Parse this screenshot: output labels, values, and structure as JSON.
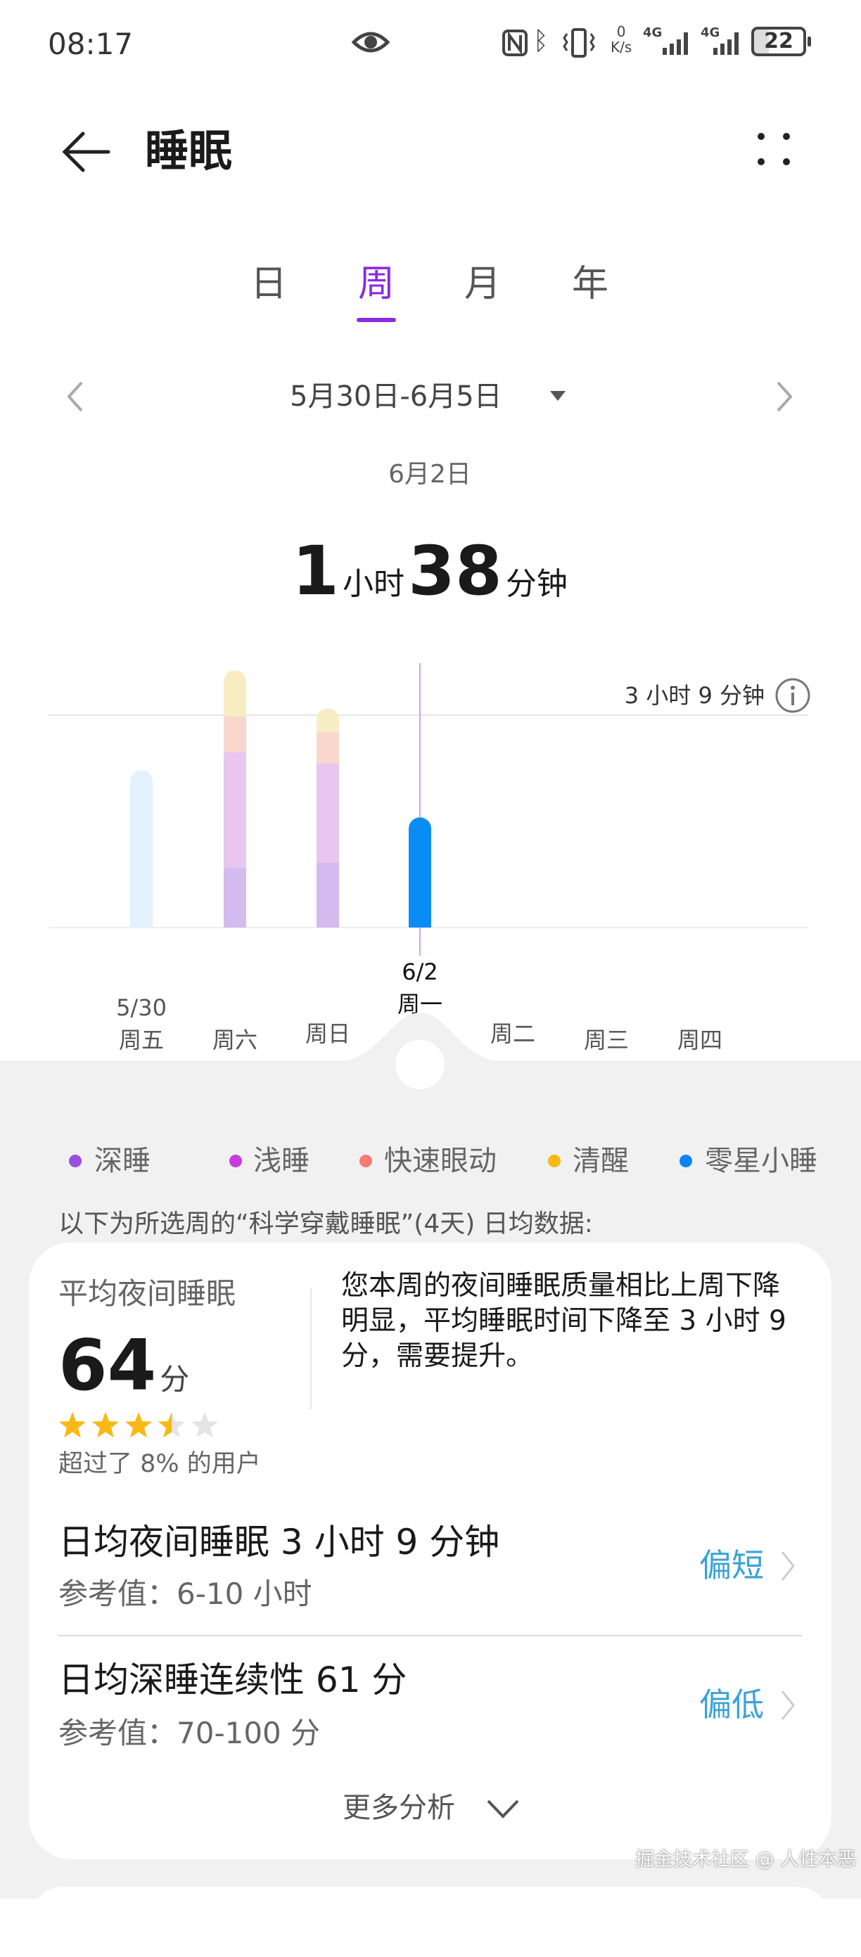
{
  "status_bar": {
    "time": "08:17",
    "net_speed_value": "0",
    "net_speed_unit": "K/s",
    "net1": "4G",
    "net2": "4G",
    "battery": "22",
    "icons": [
      "eye-icon",
      "nfc-icon",
      "bluetooth-icon",
      "vibrate-icon",
      "signal-icon",
      "battery-icon"
    ]
  },
  "header": {
    "title": "睡眠",
    "back_icon": "arrow-left-icon",
    "menu_icon": "more-dots-icon"
  },
  "tabs": [
    {
      "label": "日"
    },
    {
      "label": "周",
      "active": true
    },
    {
      "label": "月"
    },
    {
      "label": "年"
    }
  ],
  "accent": "#8a2be2",
  "date_range": "5月30日-6月5日",
  "selected_date": "6月2日",
  "summary": {
    "hours": "1",
    "hours_unit": "小时",
    "minutes": "38",
    "minutes_unit": "分钟"
  },
  "chart_data": {
    "type": "bar",
    "stacked": true,
    "categories": [
      "周五",
      "周六",
      "周日",
      "周一",
      "周二",
      "周三",
      "周四"
    ],
    "category_dates": [
      "5/30",
      "",
      "",
      "6/2",
      "",
      "",
      ""
    ],
    "unit": "minutes",
    "series": [
      {
        "name": "深睡",
        "color": "#d4bbef",
        "values": [
          0,
          53,
          58,
          0,
          0,
          0,
          0
        ]
      },
      {
        "name": "浅睡",
        "color": "#e8c6ef",
        "values": [
          0,
          103,
          88,
          0,
          0,
          0,
          0
        ]
      },
      {
        "name": "快速眼动",
        "color": "#f9d7cd",
        "values": [
          0,
          32,
          28,
          0,
          0,
          0,
          0
        ]
      },
      {
        "name": "清醒",
        "color": "#f8edc2",
        "values": [
          0,
          41,
          21,
          0,
          0,
          0,
          0
        ]
      },
      {
        "name": "零星小睡",
        "color": "#e3f1fc",
        "values": [
          140,
          0,
          0,
          98,
          0,
          0,
          0
        ]
      }
    ],
    "selected_index": 3,
    "selected_color": "#0a8cf5",
    "reference_line": {
      "value": 189,
      "label": "3 小时 9 分钟"
    },
    "ylim": [
      0,
      240
    ]
  },
  "legend": [
    {
      "label": "深睡",
      "color": "#9b4fe0"
    },
    {
      "label": "浅睡",
      "color": "#c93ae0"
    },
    {
      "label": "快速眼动",
      "color": "#f77b72"
    },
    {
      "label": "清醒",
      "color": "#f9b914"
    },
    {
      "label": "零星小睡",
      "color": "#0a84f5"
    }
  ],
  "section_note": "以下为所选周的“科学穿戴睡眠”(4天) 日均数据:",
  "score": {
    "label": "平均夜间睡眠",
    "value": "64",
    "unit": "分",
    "stars": 3.5,
    "stars_max": 5,
    "percentile": "超过了 8% 的用户"
  },
  "advice": "您本周的夜间睡眠质量相比上周下降明显，平均睡眠时间下降至 3 小时 9 分，需要提升。",
  "metrics": [
    {
      "title": "日均夜间睡眠 3 小时 9 分钟",
      "reference": "参考值：6-10 小时",
      "level": "偏短"
    },
    {
      "title": "日均深睡连续性 61 分",
      "reference": "参考值：70-100 分",
      "level": "偏低"
    }
  ],
  "more_label": "更多分析",
  "watermark": "掘金技术社区 @ 人性本恶"
}
